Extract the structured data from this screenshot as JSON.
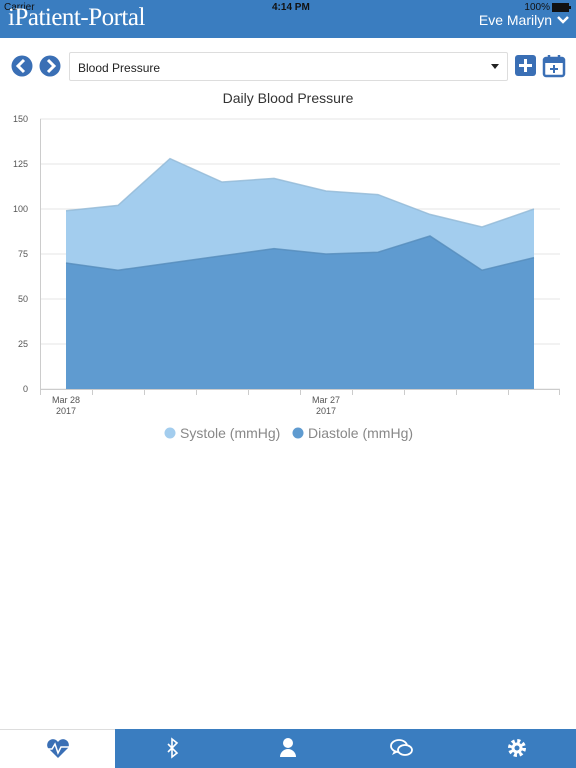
{
  "status_bar": {
    "carrier": "Carrier",
    "time": "4:14 PM",
    "battery": "100%"
  },
  "header": {
    "logo": "iPatient-Portal",
    "user": "Eve Marilyn"
  },
  "selector": {
    "value": "Blood Pressure"
  },
  "chart_data": {
    "type": "area",
    "title": "Daily Blood Pressure",
    "categories": [
      "Mar 28\n2017",
      null,
      null,
      null,
      null,
      "Mar 27\n2017",
      null,
      null,
      null,
      null
    ],
    "series": [
      {
        "name": "Systole (mmHg)",
        "color": "#a3cdee",
        "values": [
          99,
          102,
          128,
          115,
          117,
          110,
          108,
          97,
          90,
          100
        ]
      },
      {
        "name": "Diastole (mmHg)",
        "color": "#5f9bd0",
        "values": [
          70,
          66,
          70,
          74,
          78,
          75,
          76,
          85,
          66,
          73
        ]
      }
    ],
    "ylim": [
      0,
      150
    ],
    "yticks": [
      0,
      25,
      50,
      75,
      100,
      125,
      150
    ],
    "grid": true,
    "legend": "bottom"
  }
}
